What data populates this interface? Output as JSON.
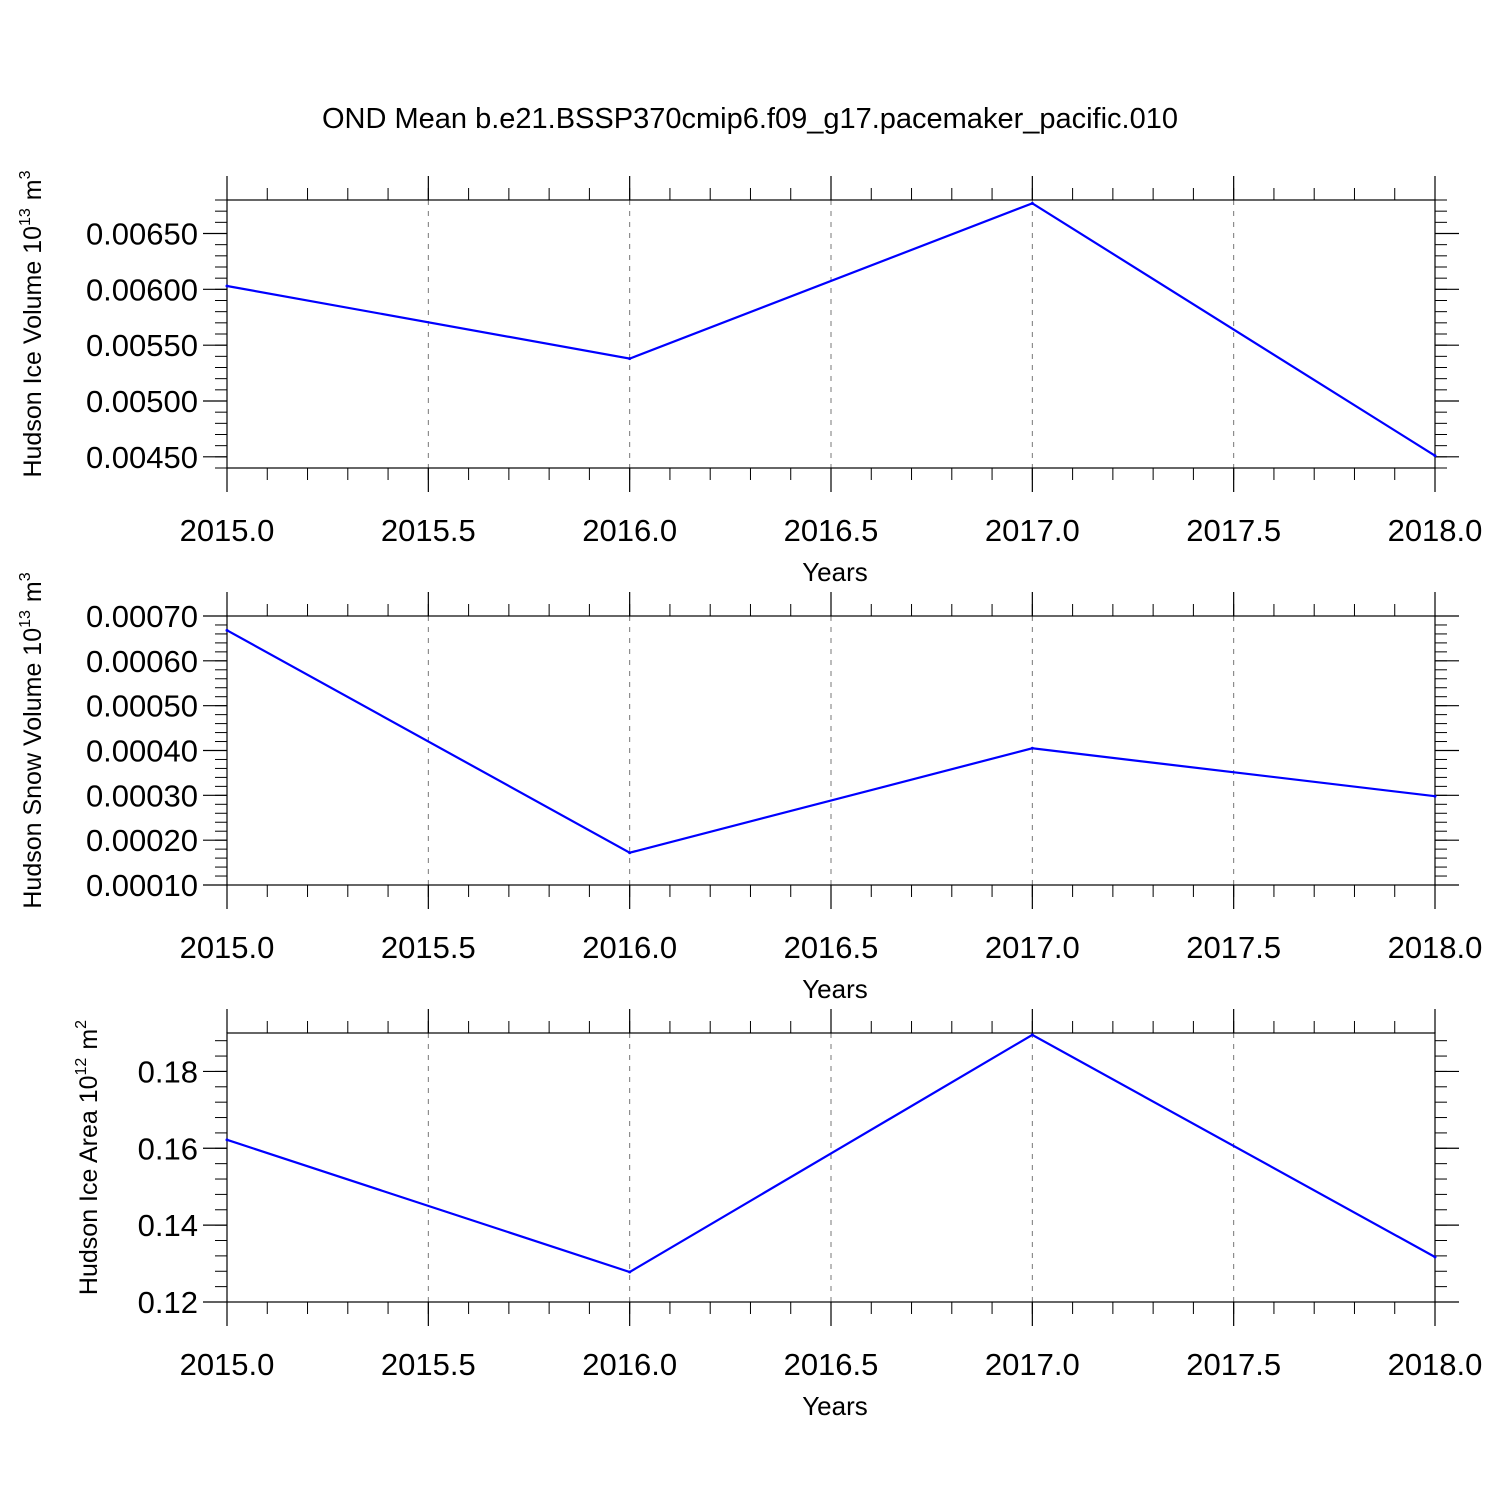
{
  "title": "OND Mean b.e21.BSSP370cmip6.f09_g17.pacemaker_pacific.010",
  "line_color": "#0000ff",
  "grid_color": "#777777",
  "chart_data": [
    {
      "type": "line",
      "ylabel": {
        "text": "Hudson Ice Volume 10",
        "exponent": "13",
        "unit": "m",
        "unit_exponent": "3"
      },
      "xlabel": "Years",
      "xlim": [
        2015.0,
        2018.0
      ],
      "ylim": [
        0.0044,
        0.0068
      ],
      "x_ticks": [
        2015.0,
        2015.5,
        2016.0,
        2016.5,
        2017.0,
        2017.5,
        2018.0
      ],
      "x_tick_labels": [
        "2015.0",
        "2015.5",
        "2016.0",
        "2016.5",
        "2017.0",
        "2017.5",
        "2018.0"
      ],
      "y_ticks": [
        0.0065,
        0.006,
        0.0055,
        0.005,
        0.0045
      ],
      "y_tick_labels": [
        "0.00650",
        "0.00600",
        "0.00550",
        "0.00500",
        "0.00450"
      ],
      "x_minor_step": 0.1,
      "y_minor_step": 0.0001,
      "grid": "vertical dashed",
      "x": [
        2015.0,
        2016.0,
        2017.0,
        2018.0
      ],
      "y": [
        0.00603,
        0.00538,
        0.00677,
        0.00451
      ]
    },
    {
      "type": "line",
      "ylabel": {
        "text": "Hudson Snow Volume 10",
        "exponent": "13",
        "unit": "m",
        "unit_exponent": "3"
      },
      "xlabel": "Years",
      "xlim": [
        2015.0,
        2018.0
      ],
      "ylim": [
        0.0001,
        0.0007
      ],
      "x_ticks": [
        2015.0,
        2015.5,
        2016.0,
        2016.5,
        2017.0,
        2017.5,
        2018.0
      ],
      "x_tick_labels": [
        "2015.0",
        "2015.5",
        "2016.0",
        "2016.5",
        "2017.0",
        "2017.5",
        "2018.0"
      ],
      "y_ticks": [
        0.0007,
        0.0006,
        0.0005,
        0.0004,
        0.0003,
        0.0002,
        0.0001
      ],
      "y_tick_labels": [
        "0.00070",
        "0.00060",
        "0.00050",
        "0.00040",
        "0.00030",
        "0.00020",
        "0.00010"
      ],
      "x_minor_step": 0.1,
      "y_minor_step": 2e-05,
      "grid": "vertical dashed",
      "x": [
        2015.0,
        2016.0,
        2017.0,
        2018.0
      ],
      "y": [
        0.000668,
        0.000172,
        0.000405,
        0.000298
      ]
    },
    {
      "type": "line",
      "ylabel": {
        "text": "Hudson Ice Area 10",
        "exponent": "12",
        "unit": "m",
        "unit_exponent": "2"
      },
      "xlabel": "Years",
      "xlim": [
        2015.0,
        2018.0
      ],
      "ylim": [
        0.12,
        0.19
      ],
      "x_ticks": [
        2015.0,
        2015.5,
        2016.0,
        2016.5,
        2017.0,
        2017.5,
        2018.0
      ],
      "x_tick_labels": [
        "2015.0",
        "2015.5",
        "2016.0",
        "2016.5",
        "2017.0",
        "2017.5",
        "2018.0"
      ],
      "y_ticks": [
        0.18,
        0.16,
        0.14,
        0.12
      ],
      "y_tick_labels": [
        "0.18",
        "0.16",
        "0.14",
        "0.12"
      ],
      "x_minor_step": 0.1,
      "y_minor_step": 0.004,
      "grid": "vertical dashed",
      "x": [
        2015.0,
        2016.0,
        2017.0,
        2018.0
      ],
      "y": [
        0.1622,
        0.1278,
        0.1895,
        0.1317
      ]
    }
  ]
}
